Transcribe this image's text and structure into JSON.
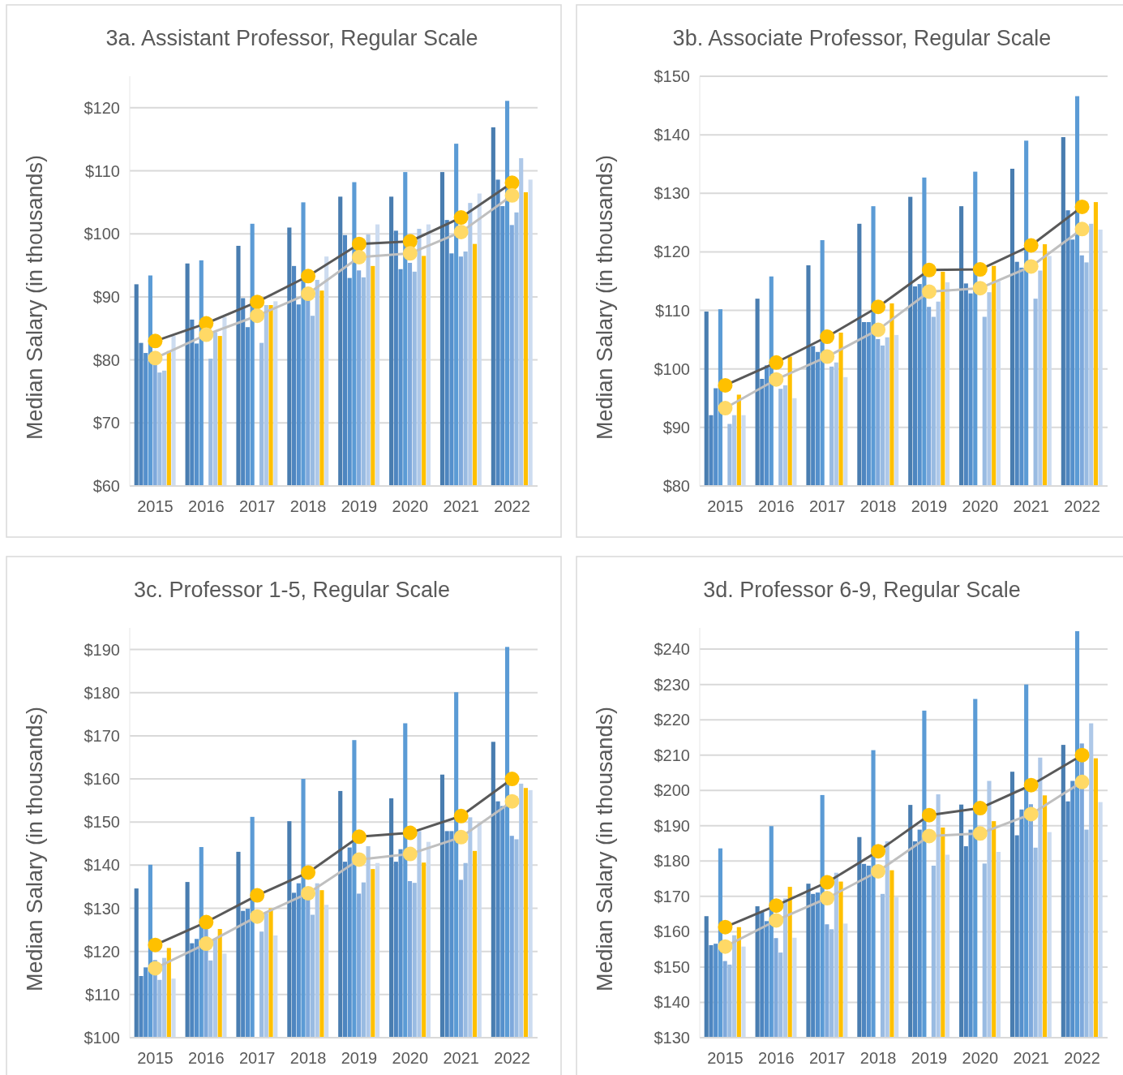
{
  "chart_data": [
    {
      "type": "bar",
      "title": "3a. Assistant Professor, Regular Scale",
      "ylabel": "Median Salary (in thousands)",
      "categories": [
        "2015",
        "2016",
        "2017",
        "2018",
        "2019",
        "2020",
        "2021",
        "2022"
      ],
      "ylim": [
        60,
        125
      ],
      "yticks": [
        {
          "value": 60,
          "label": "$60"
        },
        {
          "value": 70,
          "label": "$70"
        },
        {
          "value": 80,
          "label": "$80"
        },
        {
          "value": 90,
          "label": "$90"
        },
        {
          "value": 100,
          "label": "$100"
        },
        {
          "value": 110,
          "label": "$110"
        },
        {
          "value": 120,
          "label": "$120"
        }
      ],
      "grid": "y",
      "marker": "circle",
      "series": [
        {
          "color": "#497db0",
          "values": [
            92.0,
            95.3,
            98.1,
            101.0,
            105.9,
            105.9,
            109.8,
            116.9
          ]
        },
        {
          "color": "#4e86c0",
          "values": [
            82.7,
            86.4,
            89.8,
            94.9,
            99.8,
            100.5,
            102.2,
            108.6
          ]
        },
        {
          "color": "#5590cc",
          "values": [
            81.1,
            82.6,
            85.2,
            88.8,
            93.0,
            94.4,
            96.9,
            104.4
          ]
        },
        {
          "color": "#5b9bd5",
          "values": [
            93.4,
            95.8,
            101.6,
            105.0,
            108.2,
            109.8,
            114.3,
            121.1
          ]
        },
        {
          "color": "#7ea9dc",
          "values": [
            79.5,
            null,
            null,
            89.6,
            94.2,
            95.4,
            96.4,
            101.4
          ]
        },
        {
          "color": "#99bbe2",
          "values": [
            78.0,
            80.2,
            82.7,
            87.0,
            93.1,
            94.0,
            97.2,
            103.4
          ]
        },
        {
          "color": "#aec8e8",
          "values": [
            78.3,
            84.4,
            88.7,
            92.7,
            99.9,
            100.8,
            104.9,
            112.0
          ]
        },
        {
          "color": "#ffc000",
          "values": [
            81.4,
            83.8,
            88.7,
            91.0,
            94.9,
            96.5,
            98.4,
            106.6
          ]
        },
        {
          "color": "#cddcf0",
          "values": [
            83.8,
            86.8,
            89.3,
            96.4,
            101.5,
            101.5,
            106.4,
            108.6
          ]
        },
        {
          "type": "line",
          "color": "#595959",
          "colors": [
            "#ffc000",
            "#ffc000",
            "#ffc000",
            "#ffc000",
            "#ffc000",
            "#ffc000",
            "#ffc000",
            "#ffc000"
          ],
          "values": [
            83.0,
            85.8,
            89.2,
            93.3,
            98.4,
            98.8,
            102.6,
            108.1
          ]
        },
        {
          "type": "line",
          "color": "#bfbfbf",
          "colors": [
            "#ffd966",
            "#ffd966",
            "#ffd966",
            "#ffd966",
            "#ffd966",
            "#ffd966",
            "#ffd966",
            "#ffd966"
          ],
          "values": [
            80.3,
            84.0,
            87.0,
            90.5,
            96.3,
            96.9,
            100.3,
            106.1
          ]
        }
      ]
    },
    {
      "type": "bar",
      "title": "3b. Associate Professor, Regular Scale",
      "ylabel": "Median Salary (in thousands)",
      "categories": [
        "2015",
        "2016",
        "2017",
        "2018",
        "2019",
        "2020",
        "2021",
        "2022"
      ],
      "ylim": [
        80,
        150
      ],
      "yticks": [
        {
          "value": 80,
          "label": "$80"
        },
        {
          "value": 90,
          "label": "$90"
        },
        {
          "value": 100,
          "label": "$100"
        },
        {
          "value": 110,
          "label": "$110"
        },
        {
          "value": 120,
          "label": "$120"
        },
        {
          "value": 130,
          "label": "$130"
        },
        {
          "value": 140,
          "label": "$140"
        },
        {
          "value": 150,
          "label": "$150"
        }
      ],
      "grid": "y",
      "marker": "circle",
      "series": [
        {
          "color": "#497db0",
          "values": [
            109.8,
            112.0,
            117.7,
            124.8,
            129.4,
            127.8,
            134.2,
            139.6
          ]
        },
        {
          "color": "#4e86c0",
          "values": [
            92.1,
            98.3,
            103.9,
            108.0,
            114.1,
            114.6,
            118.3,
            127.1
          ]
        },
        {
          "color": "#5590cc",
          "values": [
            96.7,
            100.6,
            102.9,
            108.0,
            114.5,
            112.9,
            117.3,
            122.1
          ]
        },
        {
          "color": "#5b9bd5",
          "values": [
            110.2,
            115.8,
            122.0,
            127.8,
            132.7,
            133.7,
            139.0,
            146.6
          ]
        },
        {
          "color": "#7ea9dc",
          "values": [
            null,
            null,
            null,
            105.1,
            110.6,
            null,
            null,
            119.4
          ]
        },
        {
          "color": "#99bbe2",
          "values": [
            90.6,
            96.6,
            100.4,
            104.0,
            108.9,
            108.9,
            112.0,
            118.2
          ]
        },
        {
          "color": "#aec8e8",
          "values": [
            92.1,
            97.2,
            101.1,
            105.4,
            111.5,
            113.1,
            116.8,
            124.8
          ]
        },
        {
          "color": "#ffc000",
          "values": [
            95.6,
            102.1,
            106.2,
            111.2,
            116.6,
            117.6,
            121.3,
            128.5
          ]
        },
        {
          "color": "#cddcf0",
          "values": [
            92.1,
            95.0,
            98.6,
            105.8,
            114.8,
            115.0,
            119.3,
            123.8
          ]
        },
        {
          "type": "line",
          "color": "#595959",
          "colors": [
            "#ffc000",
            "#ffc000",
            "#ffc000",
            "#ffc000",
            "#ffc000",
            "#ffc000",
            "#ffc000",
            "#ffc000"
          ],
          "values": [
            97.2,
            101.1,
            105.5,
            110.6,
            116.9,
            117.0,
            121.1,
            127.7
          ]
        },
        {
          "type": "line",
          "color": "#bfbfbf",
          "colors": [
            "#ffd966",
            "#ffd966",
            "#ffd966",
            "#ffd966",
            "#ffd966",
            "#ffd966",
            "#ffd966",
            "#ffd966"
          ],
          "values": [
            93.3,
            98.2,
            102.1,
            106.7,
            113.2,
            113.8,
            117.5,
            123.9
          ]
        }
      ]
    },
    {
      "type": "bar",
      "title": "3c. Professor 1-5, Regular Scale",
      "ylabel": "Median Salary (in thousands)",
      "categories": [
        "2015",
        "2016",
        "2017",
        "2018",
        "2019",
        "2020",
        "2021",
        "2022"
      ],
      "ylim": [
        100,
        195
      ],
      "yticks": [
        {
          "value": 100,
          "label": "$100"
        },
        {
          "value": 110,
          "label": "$110"
        },
        {
          "value": 120,
          "label": "$120"
        },
        {
          "value": 130,
          "label": "$130"
        },
        {
          "value": 140,
          "label": "$140"
        },
        {
          "value": 150,
          "label": "$150"
        },
        {
          "value": 160,
          "label": "$160"
        },
        {
          "value": 170,
          "label": "$170"
        },
        {
          "value": 180,
          "label": "$180"
        },
        {
          "value": 190,
          "label": "$190"
        }
      ],
      "grid": "y",
      "marker": "circle",
      "series": [
        {
          "color": "#497db0",
          "values": [
            134.6,
            136.1,
            143.1,
            150.2,
            157.2,
            155.5,
            161.0,
            168.6
          ]
        },
        {
          "color": "#4e86c0",
          "values": [
            114.3,
            121.9,
            129.4,
            133.6,
            140.8,
            140.8,
            147.9,
            154.8
          ]
        },
        {
          "color": "#5590cc",
          "values": [
            116.3,
            122.9,
            129.9,
            135.8,
            144.1,
            143.7,
            147.9,
            153.7
          ]
        },
        {
          "color": "#5b9bd5",
          "values": [
            140.1,
            144.2,
            151.2,
            160.0,
            169.0,
            172.9,
            180.1,
            190.6
          ]
        },
        {
          "color": "#7ea9dc",
          "values": [
            118.0,
            125.4,
            null,
            132.1,
            133.4,
            136.3,
            136.6,
            146.8
          ]
        },
        {
          "color": "#99bbe2",
          "values": [
            113.4,
            117.9,
            124.6,
            128.5,
            136.0,
            135.9,
            140.5,
            146.0
          ]
        },
        {
          "color": "#aec8e8",
          "values": [
            118.5,
            122.8,
            128.9,
            135.8,
            144.4,
            147.9,
            151.1,
            158.9
          ]
        },
        {
          "color": "#ffc000",
          "values": [
            120.8,
            125.2,
            130.0,
            134.2,
            139.1,
            140.6,
            143.3,
            157.9
          ]
        },
        {
          "color": "#cddcf0",
          "values": [
            113.7,
            119.5,
            123.7,
            130.8,
            140.5,
            145.4,
            149.9,
            157.4
          ]
        },
        {
          "type": "line",
          "color": "#595959",
          "colors": [
            "#ffc000",
            "#ffc000",
            "#ffc000",
            "#ffc000",
            "#ffc000",
            "#ffc000",
            "#ffc000",
            "#ffc000"
          ],
          "values": [
            121.5,
            126.8,
            133.0,
            138.3,
            146.6,
            147.5,
            151.4,
            160.0
          ]
        },
        {
          "type": "line",
          "color": "#bfbfbf",
          "colors": [
            "#ffd966",
            "#ffd966",
            "#ffd966",
            "#ffd966",
            "#ffd966",
            "#ffd966",
            "#ffd966",
            "#ffd966"
          ],
          "values": [
            116.1,
            121.8,
            128.1,
            133.5,
            141.3,
            142.6,
            146.5,
            154.8
          ]
        }
      ]
    },
    {
      "type": "bar",
      "title": "3d. Professor 6-9, Regular Scale",
      "ylabel": "Median Salary (in thousands)",
      "categories": [
        "2015",
        "2016",
        "2017",
        "2018",
        "2019",
        "2020",
        "2021",
        "2022"
      ],
      "ylim": [
        130,
        246
      ],
      "yticks": [
        {
          "value": 130,
          "label": "$130"
        },
        {
          "value": 140,
          "label": "$140"
        },
        {
          "value": 150,
          "label": "$150"
        },
        {
          "value": 160,
          "label": "$160"
        },
        {
          "value": 170,
          "label": "$170"
        },
        {
          "value": 180,
          "label": "$180"
        },
        {
          "value": 190,
          "label": "$190"
        },
        {
          "value": 200,
          "label": "$200"
        },
        {
          "value": 210,
          "label": "$210"
        },
        {
          "value": 220,
          "label": "$220"
        },
        {
          "value": 230,
          "label": "$230"
        },
        {
          "value": 240,
          "label": "$240"
        }
      ],
      "grid": "y",
      "marker": "circle",
      "series": [
        {
          "color": "#497db0",
          "values": [
            164.4,
            167.2,
            173.6,
            186.8,
            195.9,
            196.0,
            205.3,
            212.9
          ]
        },
        {
          "color": "#4e86c0",
          "values": [
            156.2,
            165.6,
            170.7,
            179.2,
            185.6,
            184.2,
            187.3,
            196.9
          ]
        },
        {
          "color": "#5590cc",
          "values": [
            156.6,
            163.0,
            171.1,
            178.7,
            188.9,
            188.9,
            194.6,
            202.7
          ]
        },
        {
          "color": "#5b9bd5",
          "values": [
            183.6,
            189.9,
            198.7,
            211.4,
            222.6,
            225.9,
            230.0,
            245.1
          ]
        },
        {
          "color": "#7ea9dc",
          "values": [
            151.7,
            158.2,
            162.1,
            null,
            null,
            null,
            196.1,
            213.3
          ]
        },
        {
          "color": "#99bbe2",
          "values": [
            150.7,
            154.1,
            160.7,
            170.7,
            178.7,
            179.3,
            183.8,
            188.9
          ]
        },
        {
          "color": "#aec8e8",
          "values": [
            159.0,
            169.4,
            176.7,
            185.6,
            198.9,
            202.7,
            209.3,
            219.0
          ]
        },
        {
          "color": "#ffc000",
          "values": [
            161.3,
            172.7,
            174.2,
            177.4,
            189.5,
            191.3,
            198.6,
            209.1
          ]
        },
        {
          "color": "#cddcf0",
          "values": [
            155.8,
            158.3,
            162.3,
            169.8,
            181.8,
            182.6,
            188.2,
            196.7
          ]
        },
        {
          "type": "line",
          "color": "#595959",
          "colors": [
            "#ffc000",
            "#ffc000",
            "#ffc000",
            "#ffc000",
            "#ffc000",
            "#ffc000",
            "#ffc000",
            "#ffc000"
          ],
          "values": [
            161.3,
            167.4,
            174.0,
            182.8,
            193.0,
            195.0,
            201.5,
            210.0
          ]
        },
        {
          "type": "line",
          "color": "#bfbfbf",
          "colors": [
            "#ffd966",
            "#ffd966",
            "#ffd966",
            "#ffd966",
            "#ffd966",
            "#ffd966",
            "#ffd966",
            "#ffd966"
          ],
          "values": [
            155.8,
            163.2,
            169.5,
            177.1,
            187.1,
            187.8,
            193.3,
            202.4
          ]
        }
      ]
    }
  ]
}
